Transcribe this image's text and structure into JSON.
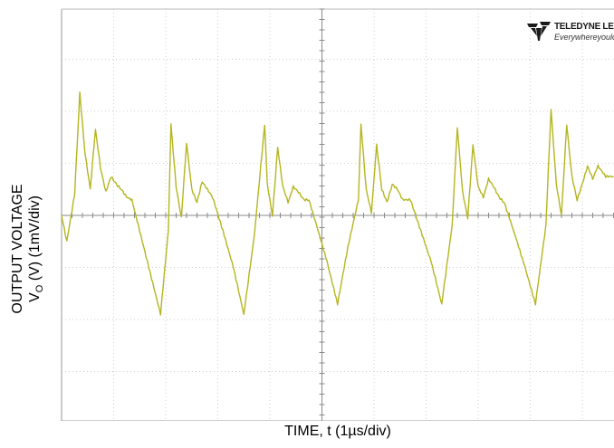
{
  "chart_data": {
    "type": "line",
    "title": "",
    "xlabel": "TIME, t (1µs/div)",
    "ylabel_line1": "OUTPUT VOLTAGE",
    "ylabel_line2_main": "V",
    "ylabel_line2_sub": "O",
    "ylabel_line2_rest": " (V) (1mV/div)",
    "x_unit": "div",
    "y_unit": "div",
    "xlim": [
      0,
      10.6
    ],
    "ylim": [
      -4,
      4
    ],
    "grid": true,
    "series": [
      {
        "color": "#b5b520",
        "x": [
          0.0,
          0.1,
          0.25,
          0.35,
          0.45,
          0.55,
          0.65,
          0.75,
          0.85,
          0.95,
          1.05,
          1.15,
          1.25,
          1.35,
          1.5,
          1.7,
          1.9,
          2.05,
          2.1,
          2.2,
          2.3,
          2.4,
          2.5,
          2.6,
          2.7,
          2.8,
          2.9,
          3.1,
          3.3,
          3.5,
          3.7,
          3.9,
          3.95,
          4.05,
          4.15,
          4.25,
          4.35,
          4.45,
          4.55,
          4.65,
          4.75,
          4.9,
          5.1,
          5.3,
          5.5,
          5.7,
          5.75,
          5.85,
          5.95,
          6.05,
          6.15,
          6.25,
          6.35,
          6.45,
          6.55,
          6.7,
          6.9,
          7.1,
          7.3,
          7.5,
          7.6,
          7.7,
          7.8,
          7.9,
          8.0,
          8.1,
          8.2,
          8.3,
          8.4,
          8.5,
          8.7,
          8.9,
          9.1,
          9.3,
          9.4,
          9.5,
          9.6,
          9.7,
          9.8,
          9.9,
          10.0,
          10.1,
          10.2,
          10.3,
          10.45,
          10.6
        ],
        "y": [
          0.0,
          -0.5,
          0.4,
          2.35,
          1.2,
          0.5,
          1.65,
          0.9,
          0.45,
          0.75,
          0.6,
          0.5,
          0.35,
          0.3,
          -0.3,
          -1.1,
          -1.9,
          -0.3,
          1.75,
          0.55,
          -0.05,
          1.4,
          0.5,
          0.25,
          0.65,
          0.5,
          0.35,
          -0.3,
          -1.0,
          -1.9,
          -0.4,
          1.75,
          0.6,
          0.0,
          1.3,
          0.55,
          0.25,
          0.55,
          0.45,
          0.3,
          0.3,
          -0.2,
          -0.9,
          -1.7,
          -0.6,
          0.3,
          1.75,
          0.5,
          0.05,
          1.35,
          0.5,
          0.25,
          0.6,
          0.5,
          0.3,
          0.3,
          -0.3,
          -0.9,
          -1.7,
          -0.2,
          1.7,
          0.45,
          -0.05,
          1.35,
          0.55,
          0.35,
          0.7,
          0.55,
          0.35,
          0.25,
          -0.35,
          -1.0,
          -1.7,
          -0.2,
          2.05,
          0.6,
          0.0,
          1.75,
          0.75,
          0.3,
          0.6,
          0.95,
          0.7,
          0.95,
          0.75,
          0.75
        ]
      }
    ]
  },
  "logo": {
    "brand": "TELEDYNE LECROY",
    "tagline": "Everywhereyoulook"
  }
}
